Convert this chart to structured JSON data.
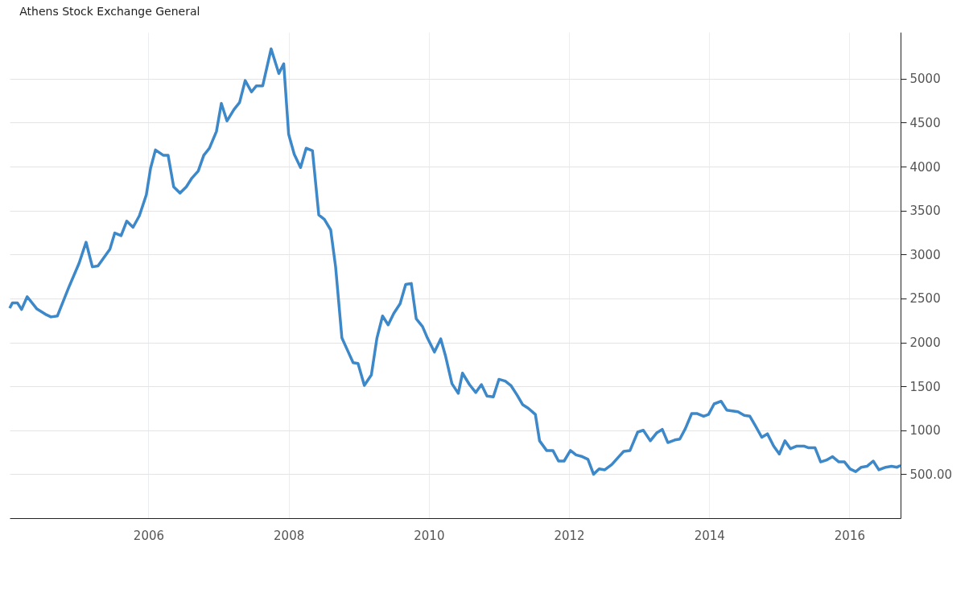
{
  "chart_data": {
    "type": "line",
    "title": "Athens Stock Exchange General",
    "x": [
      2004.02,
      2004.06,
      2004.13,
      2004.19,
      2004.27,
      2004.41,
      2004.53,
      2004.61,
      2004.7,
      2004.86,
      2005.01,
      2005.11,
      2005.2,
      2005.28,
      2005.45,
      2005.52,
      2005.61,
      2005.69,
      2005.78,
      2005.87,
      2005.97,
      2006.03,
      2006.1,
      2006.21,
      2006.28,
      2006.36,
      2006.45,
      2006.54,
      2006.62,
      2006.71,
      2006.79,
      2006.87,
      2006.97,
      2007.04,
      2007.12,
      2007.22,
      2007.3,
      2007.38,
      2007.47,
      2007.54,
      2007.63,
      2007.75,
      2007.86,
      2007.93,
      2008.0,
      2008.08,
      2008.17,
      2008.25,
      2008.34,
      2008.43,
      2008.51,
      2008.6,
      2008.67,
      2008.76,
      2008.84,
      2008.92,
      2008.99,
      2009.08,
      2009.18,
      2009.26,
      2009.34,
      2009.42,
      2009.5,
      2009.59,
      2009.67,
      2009.75,
      2009.82,
      2009.91,
      2009.98,
      2010.08,
      2010.17,
      2010.24,
      2010.33,
      2010.42,
      2010.48,
      2010.58,
      2010.67,
      2010.75,
      2010.83,
      2010.92,
      2011.0,
      2011.09,
      2011.17,
      2011.26,
      2011.34,
      2011.42,
      2011.52,
      2011.58,
      2011.68,
      2011.77,
      2011.85,
      2011.93,
      2012.02,
      2012.1,
      2012.19,
      2012.27,
      2012.35,
      2012.43,
      2012.51,
      2012.61,
      2012.7,
      2012.78,
      2012.87,
      2012.98,
      2013.06,
      2013.16,
      2013.25,
      2013.33,
      2013.41,
      2013.51,
      2013.58,
      2013.66,
      2013.75,
      2013.83,
      2013.92,
      2013.99,
      2014.07,
      2014.17,
      2014.25,
      2014.41,
      2014.5,
      2014.58,
      2014.66,
      2014.75,
      2014.83,
      2014.92,
      2015.0,
      2015.08,
      2015.16,
      2015.25,
      2015.35,
      2015.42,
      2015.51,
      2015.59,
      2015.67,
      2015.76,
      2015.85,
      2015.93,
      2016.01,
      2016.09,
      2016.17,
      2016.25,
      2016.34,
      2016.42,
      2016.52,
      2016.6,
      2016.68,
      2016.73
    ],
    "series": [
      {
        "color": "#3d88c8",
        "values": [
          2390,
          2450,
          2450,
          2375,
          2520,
          2380,
          2320,
          2290,
          2300,
          2620,
          2900,
          3140,
          2860,
          2870,
          3060,
          3245,
          3215,
          3380,
          3310,
          3440,
          3680,
          3980,
          4190,
          4130,
          4130,
          3770,
          3700,
          3770,
          3870,
          3950,
          4130,
          4210,
          4400,
          4720,
          4520,
          4650,
          4730,
          4980,
          4850,
          4920,
          4920,
          5340,
          5060,
          5170,
          4370,
          4140,
          3990,
          4210,
          4180,
          3450,
          3400,
          3280,
          2860,
          2050,
          1910,
          1770,
          1760,
          1510,
          1630,
          2050,
          2300,
          2200,
          2330,
          2440,
          2660,
          2670,
          2270,
          2180,
          2050,
          1890,
          2040,
          1840,
          1530,
          1420,
          1650,
          1520,
          1430,
          1520,
          1390,
          1380,
          1580,
          1560,
          1510,
          1400,
          1290,
          1250,
          1180,
          880,
          770,
          770,
          650,
          650,
          770,
          720,
          700,
          670,
          500,
          560,
          550,
          610,
          690,
          760,
          770,
          980,
          1000,
          880,
          970,
          1010,
          860,
          890,
          900,
          1020,
          1190,
          1190,
          1160,
          1180,
          1300,
          1330,
          1230,
          1210,
          1170,
          1160,
          1050,
          920,
          960,
          820,
          730,
          880,
          790,
          820,
          820,
          800,
          800,
          640,
          660,
          700,
          640,
          640,
          560,
          530,
          580,
          590,
          650,
          550,
          580,
          590,
          580,
          600
        ]
      }
    ],
    "xlim": [
      2004.02,
      2016.73
    ],
    "xticks": [
      2006,
      2008,
      2010,
      2012,
      2014,
      2016
    ],
    "ylim": [
      0,
      5530
    ],
    "yticks": [
      {
        "value": 500,
        "label": "500.00"
      },
      1000,
      1500,
      2000,
      2500,
      3000,
      3500,
      4000,
      4500,
      5000
    ],
    "grid": true,
    "line_style": "solid",
    "marker": "none"
  }
}
